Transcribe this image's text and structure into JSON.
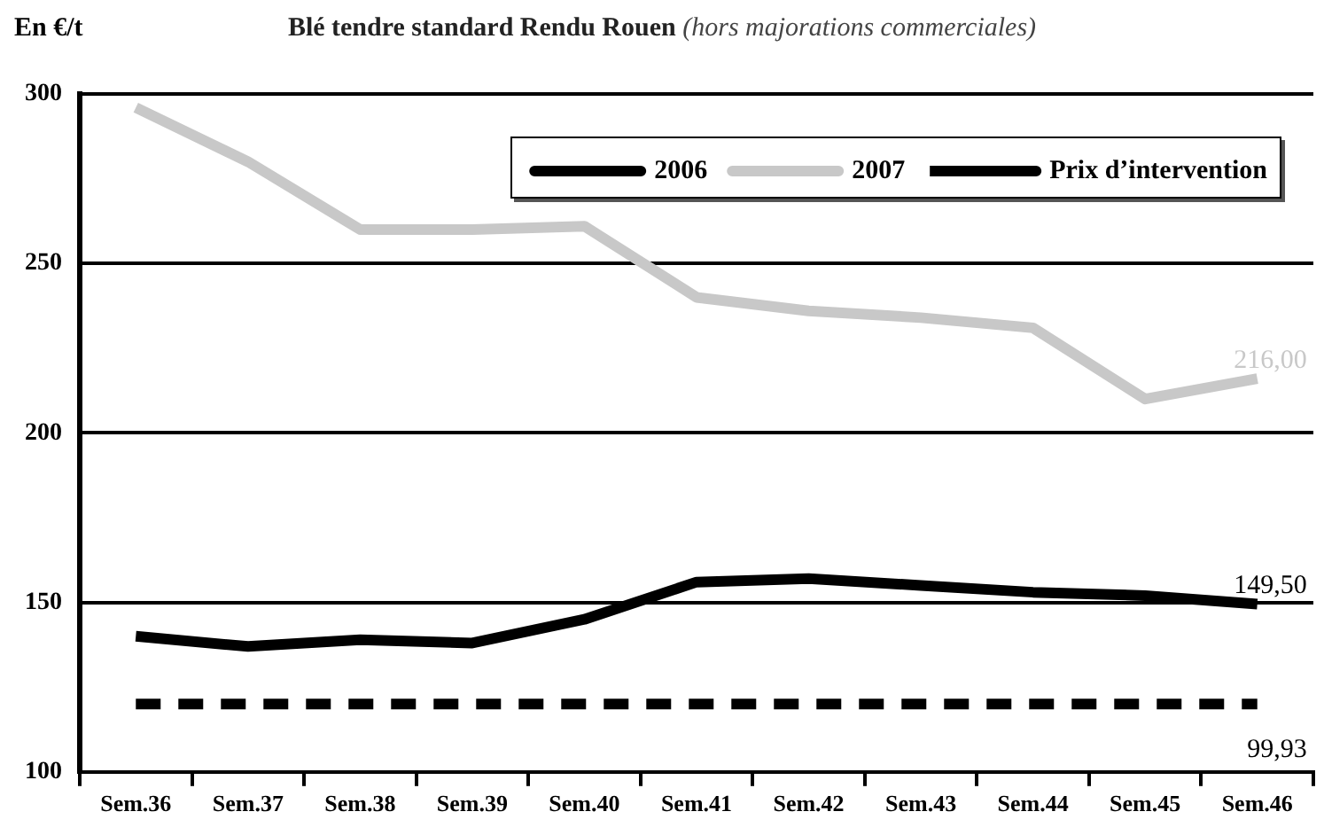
{
  "chart_data": {
    "type": "line",
    "title": "Blé tendre standard Rendu Rouen",
    "subtitle": "(hors majorations commerciales)",
    "ylabel": "En €/t",
    "categories": [
      "Sem.36",
      "Sem.37",
      "Sem.38",
      "Sem.39",
      "Sem.40",
      "Sem.41",
      "Sem.42",
      "Sem.43",
      "Sem.44",
      "Sem.45",
      "Sem.46"
    ],
    "series": [
      {
        "name": "2006",
        "color": "#000000",
        "values": [
          140,
          137,
          139,
          138,
          145,
          156,
          157,
          155,
          153,
          152,
          149.5
        ],
        "value_labels": [
          null,
          null,
          null,
          null,
          null,
          null,
          null,
          null,
          null,
          null,
          "149,50"
        ]
      },
      {
        "name": "2007",
        "color": "#c8c8c8",
        "values": [
          296,
          280,
          260,
          260,
          261,
          240,
          236,
          234,
          231,
          210,
          216
        ],
        "value_labels": [
          null,
          null,
          null,
          null,
          null,
          null,
          null,
          null,
          null,
          null,
          "216,00"
        ]
      },
      {
        "name": "Prix d’intervention",
        "color": "#000000",
        "line_style": "dashed",
        "values": [
          120,
          120,
          120,
          120,
          120,
          120,
          120,
          120,
          120,
          120,
          120
        ]
      }
    ],
    "annotations": [
      {
        "text": "99,93",
        "x": "Sem.46",
        "y": 120
      }
    ],
    "ylim": [
      100,
      300
    ],
    "yticks": [
      100,
      150,
      200,
      250,
      300
    ],
    "grid": "y",
    "legend": "top right",
    "marker": "none",
    "line_style": "solid"
  }
}
